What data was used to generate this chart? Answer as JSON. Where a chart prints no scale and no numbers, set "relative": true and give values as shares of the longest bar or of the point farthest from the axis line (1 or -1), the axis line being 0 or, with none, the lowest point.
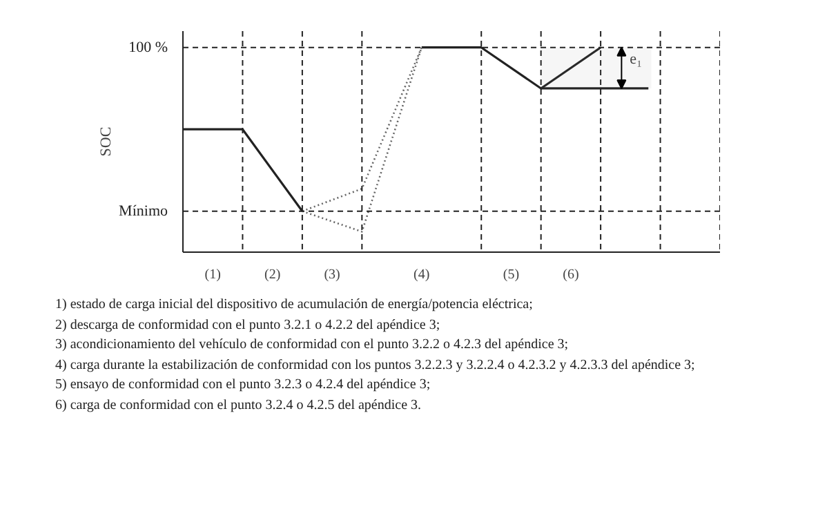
{
  "chart_data": {
    "type": "line",
    "relative": true,
    "ylabel": "SOC",
    "x": [
      0,
      1,
      2,
      3,
      4,
      5,
      6,
      7
    ],
    "xlim": [
      0,
      9
    ],
    "xticks": [
      {
        "value": 0.5,
        "label": "(1)"
      },
      {
        "value": 1.5,
        "label": "(2)"
      },
      {
        "value": 2.5,
        "label": "(3)"
      },
      {
        "value": 4,
        "label": "(4)"
      },
      {
        "value": 5.5,
        "label": "(5)"
      },
      {
        "value": 6.5,
        "label": "(6)"
      }
    ],
    "series": [
      {
        "color": "#222222",
        "line_style": "solid",
        "values": [
          0.6,
          0.6,
          0.2,
          null,
          1,
          1,
          0.8,
          1
        ]
      },
      {
        "color": "#666666",
        "line_style": "dotted",
        "x": [
          2,
          3,
          4
        ],
        "values": [
          0.2,
          0.31,
          1
        ]
      },
      {
        "color": "#666666",
        "line_style": "dotted",
        "x": [
          2,
          3,
          4
        ],
        "values": [
          0.2,
          0.1,
          1
        ]
      },
      {
        "color": "#222222",
        "line_style": "solid",
        "x": [
          6,
          7.8
        ],
        "values": [
          0.8,
          0.8
        ]
      }
    ],
    "ref_lines": [
      {
        "axis": "y",
        "value": 1,
        "label": "100 %",
        "line_style": "dashed"
      },
      {
        "axis": "y",
        "value": 0.2,
        "label": "Mínimo",
        "line_style": "dashed"
      },
      {
        "axis": "x",
        "value": 1,
        "line_style": "dashed"
      },
      {
        "axis": "x",
        "value": 2,
        "line_style": "dashed"
      },
      {
        "axis": "x",
        "value": 3,
        "line_style": "dashed"
      },
      {
        "axis": "x",
        "value": 5,
        "line_style": "dashed"
      },
      {
        "axis": "x",
        "value": 6,
        "line_style": "dashed"
      },
      {
        "axis": "x",
        "value": 7,
        "line_style": "dashed"
      },
      {
        "axis": "x",
        "value": 8,
        "line_style": "dashed"
      },
      {
        "axis": "x",
        "value": 9,
        "line_style": "dashed"
      }
    ],
    "bands": [
      {
        "axis": "y",
        "from": 0.8,
        "to": 1,
        "label": "e₁"
      }
    ],
    "grid": false,
    "marker": "none",
    "annotations": [
      "1) estado de carga inicial del dispositivo de acumulación de energía/potencia eléctrica;",
      "2) descarga de conformidad con el punto 3.2.1 o 4.2.2 del apéndice 3;",
      "3) acondicionamiento del vehículo de conformidad con el punto 3.2.2 o 4.2.3 del apéndice 3;",
      "4) carga durante la estabilización de conformidad con los puntos 3.2.2.3 y 3.2.2.4 o 4.2.3.2 y 4.2.3.3 del apéndice 3;",
      "5) ensayo de conformidad con el punto 3.2.3 o 4.2.4 del apéndice 3;",
      "6) carga de conformidad con el punto 3.2.4 o 4.2.5 del apéndice 3."
    ]
  }
}
